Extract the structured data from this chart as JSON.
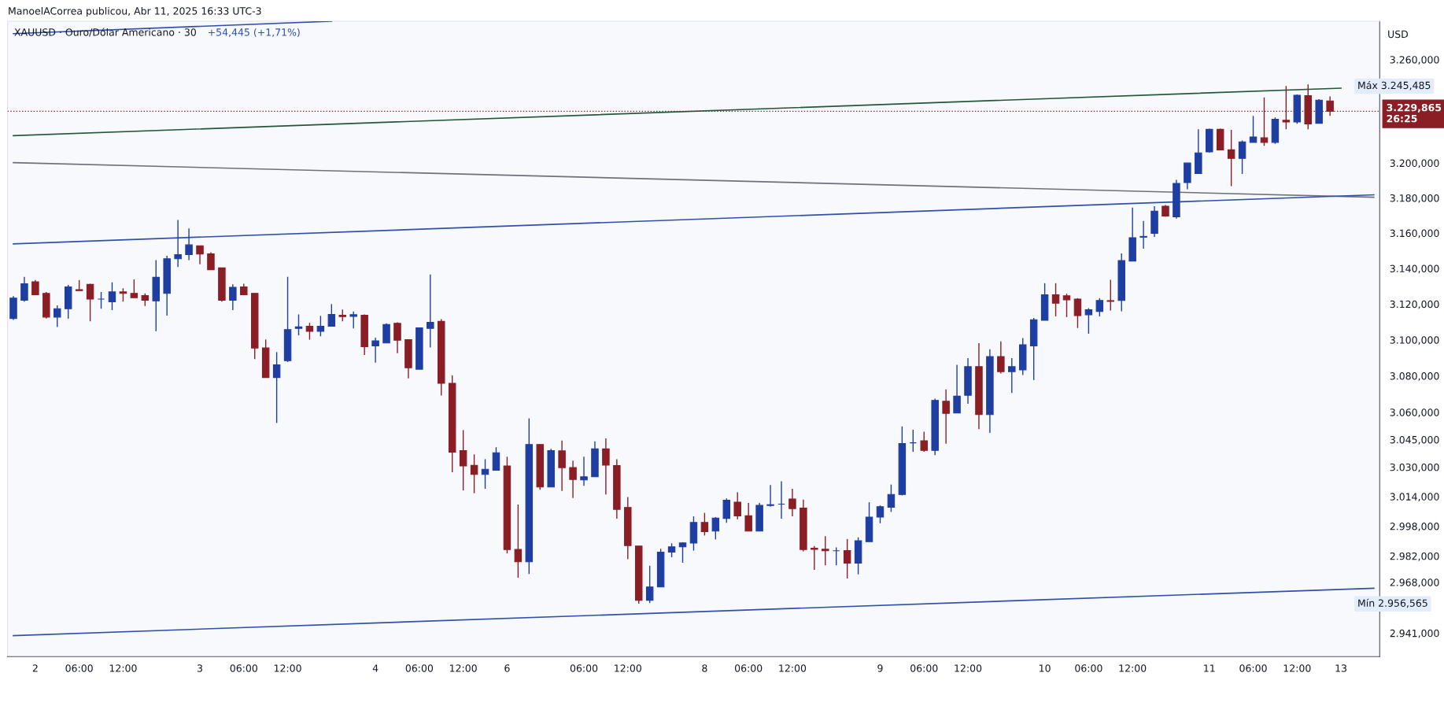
{
  "chart_data": {
    "type": "candlestick",
    "title": "XAUUSD · Ouro/Dólar Americano · 30",
    "subtitle": "+54,445 (+1,71%)",
    "ylabel": "USD",
    "log": true,
    "annotations": [
      "ManoelACorrea publicou, Abr 11, 2025 16:33 UTC-3",
      "Máx 3.245,485",
      "Mín 2.956,565"
    ],
    "ylim": [
      2928.6,
      3282.5
    ],
    "yticks": [
      {
        "value": 3260,
        "label": "3.260,000"
      },
      {
        "value": 3200,
        "label": "3.200,000"
      },
      {
        "value": 3180,
        "label": "3.180,000"
      },
      {
        "value": 3160,
        "label": "3.160,000"
      },
      {
        "value": 3140,
        "label": "3.140,000"
      },
      {
        "value": 3120,
        "label": "3.120,000"
      },
      {
        "value": 3100,
        "label": "3.100,000"
      },
      {
        "value": 3080,
        "label": "3.080,000"
      },
      {
        "value": 3060,
        "label": "3.060,000"
      },
      {
        "value": 3045,
        "label": "3.045,000"
      },
      {
        "value": 3030,
        "label": "3.030,000"
      },
      {
        "value": 3014,
        "label": "3.014,000"
      },
      {
        "value": 2998,
        "label": "2.998,000"
      },
      {
        "value": 2982,
        "label": "2.982,000"
      },
      {
        "value": 2968,
        "label": "2.968,000"
      },
      {
        "value": 2941,
        "label": "2.941,000"
      }
    ],
    "ref_lines": [
      {
        "axis": "y",
        "value": 3229.865,
        "label": "3.229,865\n26:25",
        "color": "#8b1d25",
        "line_style": "dotted"
      }
    ],
    "categories": [
      null,
      null,
      "2",
      null,
      null,
      null,
      "06:00",
      null,
      null,
      null,
      "12:00",
      null,
      null,
      null,
      null,
      null,
      null,
      "3",
      null,
      null,
      null,
      "06:00",
      null,
      null,
      null,
      "12:00",
      null,
      null,
      null,
      null,
      null,
      null,
      null,
      "4",
      null,
      null,
      null,
      "06:00",
      null,
      null,
      null,
      "12:00",
      null,
      null,
      null,
      "6",
      null,
      null,
      null,
      null,
      null,
      null,
      "06:00",
      null,
      null,
      null,
      "12:00",
      null,
      null,
      null,
      null,
      null,
      null,
      "8",
      null,
      null,
      null,
      "06:00",
      null,
      null,
      null,
      "12:00",
      null,
      null,
      null,
      null,
      null,
      null,
      null,
      "9",
      null,
      null,
      null,
      "06:00",
      null,
      null,
      null,
      "12:00",
      null,
      null,
      null,
      null,
      null,
      null,
      "10",
      null,
      null,
      null,
      "06:00",
      null,
      null,
      null,
      "12:00",
      null,
      null,
      null,
      null,
      null,
      null,
      "11",
      null,
      null,
      null,
      "06:00",
      null,
      null,
      null,
      "12:00",
      null,
      null,
      null,
      "13",
      null,
      null,
      null
    ],
    "ohlc": [
      [
        3111.9,
        3124.4,
        3111.1,
        3123.3
      ],
      [
        3122.1,
        3135.3,
        3121.3,
        3131.4
      ],
      [
        3132.5,
        3133.5,
        3125.2,
        3125.2
      ],
      [
        3126.0,
        3126.8,
        3111.9,
        3112.7
      ],
      [
        3112.7,
        3119.3,
        3107.2,
        3117.4
      ],
      [
        3117.4,
        3130.7,
        3111.9,
        3129.6
      ],
      [
        3128.0,
        3133.5,
        3127.5,
        3127.5
      ],
      [
        3131.0,
        3131.4,
        3110.3,
        3122.8
      ],
      [
        3122.8,
        3126.8,
        3117.4,
        3122.8
      ],
      [
        3121.3,
        3132.2,
        3116.6,
        3126.8
      ],
      [
        3126.8,
        3128.8,
        3121.3,
        3126.0
      ],
      [
        3126.0,
        3133.8,
        3123.6,
        3123.6
      ],
      [
        3124.7,
        3126.0,
        3118.9,
        3122.1
      ],
      [
        3121.8,
        3144.7,
        3104.9,
        3135.0
      ],
      [
        3126.0,
        3147.1,
        3113.5,
        3145.5
      ],
      [
        3145.5,
        3167.4,
        3140.8,
        3147.8
      ],
      [
        3147.8,
        3162.6,
        3144.7,
        3153.3
      ],
      [
        3152.8,
        3152.8,
        3142.4,
        3148.2
      ],
      [
        3148.2,
        3149.1,
        3139.3,
        3139.3
      ],
      [
        3140.3,
        3140.3,
        3121.3,
        3122.1
      ],
      [
        3122.1,
        3131.1,
        3116.6,
        3129.4
      ],
      [
        3129.6,
        3131.4,
        3125.2,
        3125.2
      ],
      [
        3126.0,
        3126.0,
        3089.3,
        3095.5
      ],
      [
        3095.5,
        3100.2,
        3079.1,
        3079.1
      ],
      [
        3079.1,
        3093.2,
        3054.1,
        3086.1
      ],
      [
        3088.5,
        3135.3,
        3087.7,
        3105.7
      ],
      [
        3106.4,
        3114.2,
        3102.5,
        3107.2
      ],
      [
        3107.6,
        3109.5,
        3100.1,
        3104.8
      ],
      [
        3104.8,
        3113.4,
        3102.0,
        3107.6
      ],
      [
        3107.6,
        3120.0,
        3107.6,
        3114.2
      ],
      [
        3113.7,
        3116.9,
        3110.3,
        3113.0
      ],
      [
        3113.1,
        3115.8,
        3106.4,
        3114.0
      ],
      [
        3113.7,
        3114.2,
        3091.6,
        3096.2
      ],
      [
        3096.7,
        3101.2,
        3087.3,
        3099.4
      ],
      [
        3098.3,
        3109.2,
        3098.3,
        3108.6
      ],
      [
        3109.2,
        3109.8,
        3092.6,
        3099.8
      ],
      [
        3100.1,
        3100.1,
        3078.6,
        3084.5
      ],
      [
        3083.7,
        3106.7,
        3083.7,
        3106.7
      ],
      [
        3106.4,
        3136.6,
        3095.8,
        3109.8
      ],
      [
        3110.3,
        3111.5,
        3069.2,
        3075.9
      ],
      [
        3075.9,
        3080.3,
        3027.2,
        3038.1
      ],
      [
        3038.9,
        3050.2,
        3017.3,
        3030.6
      ],
      [
        3030.9,
        3036.9,
        3015.8,
        3026.0
      ],
      [
        3026.0,
        3034.3,
        3018.2,
        3028.8
      ],
      [
        3028.3,
        3040.8,
        3028.3,
        3037.8
      ],
      [
        3030.6,
        3035.6,
        2983.4,
        2985.5
      ],
      [
        2985.5,
        3009.7,
        2970.4,
        2978.9
      ],
      [
        2978.9,
        3056.6,
        2972.4,
        3042.3
      ],
      [
        3042.3,
        3042.3,
        3017.7,
        3019.2
      ],
      [
        3019.2,
        3039.9,
        3019.2,
        3038.9
      ],
      [
        3038.8,
        3044.5,
        3017.0,
        3029.7
      ],
      [
        3029.7,
        3033.5,
        3013.2,
        3023.3
      ],
      [
        3023.0,
        3035.6,
        3019.8,
        3024.7
      ],
      [
        3024.7,
        3044.0,
        3024.7,
        3039.9
      ],
      [
        3039.9,
        3045.6,
        3015.1,
        3031.1
      ],
      [
        3030.8,
        3034.3,
        3002.1,
        3007.1
      ],
      [
        3008.1,
        3013.7,
        2980.3,
        2987.6
      ],
      [
        2987.3,
        2987.3,
        2956.565,
        2958.4
      ],
      [
        2958.4,
        2976.8,
        2957.0,
        2965.5
      ],
      [
        2965.5,
        2985.9,
        2965.5,
        2984.1
      ],
      [
        2984.1,
        2988.8,
        2981.3,
        2986.9
      ],
      [
        2986.9,
        2989.4,
        2978.4,
        2989.0
      ],
      [
        2989.0,
        3003.3,
        2984.9,
        3000.0
      ],
      [
        3000.0,
        3005.2,
        2993.0,
        2995.1
      ],
      [
        2995.4,
        3002.9,
        2990.9,
        3002.4
      ],
      [
        3002.2,
        3013.0,
        2999.8,
        3012.0
      ],
      [
        3011.0,
        3016.3,
        3001.7,
        3003.6
      ],
      [
        3003.6,
        3010.6,
        2995.4,
        2995.4
      ],
      [
        2995.4,
        3010.6,
        2995.4,
        3009.2
      ],
      [
        3009.2,
        3020.2,
        3008.5,
        3009.6
      ],
      [
        3009.9,
        3022.3,
        3002.1,
        3009.9
      ],
      [
        3012.7,
        3018.2,
        3003.3,
        3007.5
      ],
      [
        3007.8,
        3012.4,
        2984.5,
        2985.5
      ],
      [
        2986.2,
        2987.3,
        2974.6,
        2985.6
      ],
      [
        2985.6,
        2992.6,
        2977.0,
        2984.8
      ],
      [
        2984.8,
        2986.6,
        2977.0,
        2984.8
      ],
      [
        2984.9,
        2991.1,
        2970.0,
        2978.2
      ],
      [
        2978.2,
        2992.0,
        2972.2,
        2990.2
      ],
      [
        2989.7,
        3010.9,
        2989.7,
        3002.9
      ],
      [
        3002.9,
        3009.2,
        2999.6,
        3008.5
      ],
      [
        3008.2,
        3020.5,
        3005.7,
        3015.1
      ],
      [
        3015.1,
        3052.2,
        3014.6,
        3042.8
      ],
      [
        3043.2,
        3050.4,
        3038.3,
        3043.2
      ],
      [
        3044.3,
        3049.3,
        3038.3,
        3039.1
      ],
      [
        3039.1,
        3067.4,
        3036.5,
        3066.5
      ],
      [
        3066.0,
        3072.5,
        3042.7,
        3059.4
      ],
      [
        3059.6,
        3086.1,
        3059.6,
        3068.8
      ],
      [
        3069.3,
        3089.8,
        3064.6,
        3085.1
      ],
      [
        3085.1,
        3098.2,
        3050.7,
        3058.7
      ],
      [
        3058.7,
        3094.8,
        3048.6,
        3090.7
      ],
      [
        3090.7,
        3099.1,
        3081.4,
        3082.4
      ],
      [
        3082.4,
        3089.8,
        3070.6,
        3085.1
      ],
      [
        3083.3,
        3101.0,
        3080.5,
        3097.3
      ],
      [
        3096.7,
        3112.2,
        3077.7,
        3111.2
      ],
      [
        3110.9,
        3131.7,
        3110.9,
        3125.2
      ],
      [
        3125.2,
        3131.7,
        3113.1,
        3120.5
      ],
      [
        3124.6,
        3125.8,
        3112.7,
        3122.4
      ],
      [
        3122.8,
        3123.3,
        3106.6,
        3113.5
      ],
      [
        3114.0,
        3117.7,
        3103.4,
        3116.8
      ],
      [
        3115.9,
        3123.3,
        3113.1,
        3122.0
      ],
      [
        3121.9,
        3133.6,
        3116.4,
        3121.5
      ],
      [
        3122.0,
        3148.5,
        3115.9,
        3144.4
      ],
      [
        3144.2,
        3174.5,
        3144.2,
        3157.4
      ],
      [
        3157.7,
        3166.9,
        3151.1,
        3158.1
      ],
      [
        3159.9,
        3175.3,
        3157.8,
        3172.5
      ],
      [
        3175.3,
        3176.0,
        3169.3,
        3169.7
      ],
      [
        3169.3,
        3190.3,
        3168.2,
        3188.3
      ],
      [
        3188.8,
        3200.0,
        3185.0,
        3200.0
      ],
      [
        3194.0,
        3219.5,
        3194.0,
        3205.8
      ],
      [
        3206.4,
        3219.8,
        3206.1,
        3219.4
      ],
      [
        3219.4,
        3219.8,
        3207.6,
        3207.6
      ],
      [
        3207.6,
        3219.1,
        3186.8,
        3202.7
      ],
      [
        3202.7,
        3213.0,
        3193.7,
        3212.2
      ],
      [
        3211.9,
        3227.2,
        3211.9,
        3215.0
      ],
      [
        3214.5,
        3237.9,
        3209.9,
        3211.9
      ],
      [
        3211.9,
        3226.3,
        3211.0,
        3225.2
      ],
      [
        3224.7,
        3244.6,
        3219.5,
        3223.7
      ],
      [
        3223.7,
        3239.7,
        3222.6,
        3239.2
      ],
      [
        3238.9,
        3245.485,
        3219.5,
        3222.6
      ],
      [
        3222.9,
        3236.9,
        3222.9,
        3236.3
      ],
      [
        3235.9,
        3238.5,
        3227.2,
        3229.865
      ],
      null,
      null,
      null,
      null
    ],
    "colors": [
      "#1e3ea1",
      "#1e3ea1",
      "#8b1d25",
      "#8b1d25",
      "#1e3ea1",
      "#1e3ea1",
      "#8b1d25",
      "#8b1d25",
      "#1e3ea1",
      "#1e3ea1",
      "#8b1d25",
      "#8b1d25",
      "#8b1d25",
      "#1e3ea1",
      "#1e3ea1",
      "#1e3ea1",
      "#1e3ea1",
      "#8b1d25",
      "#8b1d25",
      "#8b1d25",
      "#1e3ea1",
      "#8b1d25",
      "#8b1d25",
      "#8b1d25",
      "#1e3ea1",
      "#1e3ea1",
      "#1e3ea1",
      "#8b1d25",
      "#1e3ea1",
      "#1e3ea1",
      "#8b1d25",
      "#1e3ea1",
      "#8b1d25",
      "#1e3ea1",
      "#1e3ea1",
      "#8b1d25",
      "#8b1d25",
      "#1e3ea1",
      "#1e3ea1",
      "#8b1d25",
      "#8b1d25",
      "#8b1d25",
      "#8b1d25",
      "#1e3ea1",
      "#1e3ea1",
      "#8b1d25",
      "#8b1d25",
      "#1e3ea1",
      "#8b1d25",
      "#1e3ea1",
      "#8b1d25",
      "#8b1d25",
      "#1e3ea1",
      "#1e3ea1",
      "#8b1d25",
      "#8b1d25",
      "#8b1d25",
      "#8b1d25",
      "#1e3ea1",
      "#1e3ea1",
      "#1e3ea1",
      "#1e3ea1",
      "#1e3ea1",
      "#8b1d25",
      "#1e3ea1",
      "#1e3ea1",
      "#8b1d25",
      "#8b1d25",
      "#1e3ea1",
      "#1e3ea1",
      "#1e3ea1",
      "#8b1d25",
      "#8b1d25",
      "#8b1d25",
      "#8b1d25",
      "#1e3ea1",
      "#8b1d25",
      "#1e3ea1",
      "#1e3ea1",
      "#1e3ea1",
      "#1e3ea1",
      "#1e3ea1",
      "#1e3ea1",
      "#8b1d25",
      "#1e3ea1",
      "#8b1d25",
      "#1e3ea1",
      "#1e3ea1",
      "#8b1d25",
      "#1e3ea1",
      "#8b1d25",
      "#1e3ea1",
      "#1e3ea1",
      "#1e3ea1",
      "#1e3ea1",
      "#8b1d25",
      "#8b1d25",
      "#8b1d25",
      "#1e3ea1",
      "#1e3ea1",
      "#8b1d25",
      "#1e3ea1",
      "#1e3ea1",
      "#1e3ea1",
      "#1e3ea1",
      "#8b1d25",
      "#1e3ea1",
      "#1e3ea1",
      "#1e3ea1",
      "#1e3ea1",
      "#8b1d25",
      "#8b1d25",
      "#1e3ea1",
      "#1e3ea1",
      "#8b1d25",
      "#1e3ea1",
      "#8b1d25",
      "#1e3ea1",
      "#8b1d25",
      "#1e3ea1",
      "#8b1d25",
      null,
      null,
      null,
      null
    ],
    "series": [
      {
        "type": "line",
        "color": "#24573a",
        "values": [
          3215.8,
          null,
          null,
          null,
          null,
          null,
          null,
          null,
          null,
          null,
          null,
          null,
          null,
          null,
          null,
          null,
          null,
          null,
          null,
          null,
          null,
          null,
          null,
          null,
          null,
          null,
          null,
          null,
          null,
          null,
          null,
          null,
          null,
          null,
          null,
          null,
          null,
          null,
          null,
          null,
          null,
          null,
          null,
          null,
          null,
          null,
          null,
          null,
          null,
          null,
          null,
          null,
          null,
          null,
          null,
          null,
          null,
          null,
          null,
          null,
          null,
          null,
          null,
          null,
          null,
          null,
          null,
          null,
          null,
          null,
          null,
          null,
          null,
          null,
          null,
          null,
          null,
          null,
          null,
          null,
          null,
          null,
          null,
          null,
          null,
          null,
          null,
          null,
          null,
          null,
          null,
          null,
          null,
          null,
          null,
          null,
          null,
          null,
          null,
          null,
          null,
          null,
          null,
          null,
          null,
          null,
          null,
          null,
          null,
          null,
          null,
          null,
          null,
          null,
          null,
          null,
          null,
          null,
          null,
          null,
          null,
          3243.3,
          null,
          null,
          null
        ]
      },
      {
        "type": "line",
        "color": "#6e7178",
        "values": [
          3200.2,
          null,
          null,
          null,
          null,
          null,
          null,
          null,
          null,
          null,
          null,
          null,
          null,
          null,
          null,
          null,
          null,
          null,
          null,
          null,
          null,
          null,
          null,
          null,
          null,
          null,
          null,
          null,
          null,
          null,
          null,
          null,
          null,
          null,
          null,
          null,
          null,
          null,
          null,
          null,
          null,
          null,
          null,
          null,
          null,
          null,
          null,
          null,
          null,
          null,
          null,
          null,
          null,
          null,
          null,
          null,
          null,
          null,
          null,
          null,
          null,
          null,
          null,
          null,
          null,
          null,
          null,
          null,
          null,
          null,
          null,
          null,
          null,
          null,
          null,
          null,
          null,
          null,
          null,
          null,
          null,
          null,
          null,
          null,
          null,
          null,
          null,
          null,
          null,
          null,
          null,
          null,
          null,
          null,
          null,
          null,
          null,
          null,
          null,
          null,
          null,
          null,
          null,
          null,
          null,
          null,
          null,
          null,
          null,
          null,
          null,
          null,
          null,
          null,
          null,
          null,
          null,
          null,
          null,
          null,
          null,
          null,
          null,
          null,
          3180.4
        ]
      },
      {
        "type": "line",
        "color": "#2f4fb0",
        "values": [
          3153.9,
          null,
          null,
          null,
          null,
          null,
          null,
          null,
          null,
          null,
          null,
          null,
          null,
          null,
          null,
          null,
          null,
          null,
          null,
          null,
          null,
          null,
          null,
          null,
          null,
          null,
          null,
          null,
          null,
          null,
          null,
          null,
          null,
          null,
          null,
          null,
          null,
          null,
          null,
          null,
          null,
          null,
          null,
          null,
          null,
          null,
          null,
          null,
          null,
          null,
          null,
          null,
          null,
          null,
          null,
          null,
          null,
          null,
          null,
          null,
          null,
          null,
          null,
          null,
          null,
          null,
          null,
          null,
          null,
          null,
          null,
          null,
          null,
          null,
          null,
          null,
          null,
          null,
          null,
          null,
          null,
          null,
          null,
          null,
          null,
          null,
          null,
          null,
          null,
          null,
          null,
          null,
          null,
          null,
          null,
          null,
          null,
          null,
          null,
          null,
          null,
          null,
          null,
          null,
          null,
          null,
          null,
          null,
          null,
          null,
          null,
          null,
          null,
          null,
          null,
          null,
          null,
          null,
          null,
          null,
          null,
          null,
          null,
          null,
          3181.8
        ]
      },
      {
        "type": "line",
        "color": "#2f4fb0",
        "values": [
          2939.7,
          null,
          null,
          null,
          null,
          null,
          null,
          null,
          null,
          null,
          null,
          null,
          null,
          null,
          null,
          null,
          null,
          null,
          null,
          null,
          null,
          null,
          null,
          null,
          null,
          null,
          null,
          null,
          null,
          null,
          null,
          null,
          null,
          null,
          null,
          null,
          null,
          null,
          null,
          null,
          null,
          null,
          null,
          null,
          null,
          null,
          null,
          null,
          null,
          null,
          null,
          null,
          null,
          null,
          null,
          null,
          null,
          null,
          null,
          null,
          null,
          null,
          null,
          null,
          null,
          null,
          null,
          null,
          null,
          null,
          null,
          null,
          null,
          null,
          null,
          null,
          null,
          null,
          null,
          null,
          null,
          null,
          null,
          null,
          null,
          null,
          null,
          null,
          null,
          null,
          null,
          null,
          null,
          null,
          null,
          null,
          null,
          null,
          null,
          null,
          null,
          null,
          null,
          null,
          null,
          null,
          null,
          null,
          null,
          null,
          null,
          null,
          null,
          null,
          null,
          null,
          null,
          null,
          null,
          null,
          null,
          null,
          null,
          null,
          2964.8
        ]
      },
      {
        "type": "line",
        "color": "#2f4fb0",
        "values": [
          3275.2,
          null,
          null,
          null,
          null,
          null,
          null,
          null,
          null,
          null,
          null,
          null,
          null,
          null,
          null,
          null,
          null,
          null,
          null,
          null,
          null,
          null,
          null,
          null,
          null,
          null,
          null,
          null,
          null,
          3282.5,
          null,
          null,
          null,
          null,
          null,
          null,
          null,
          null,
          null,
          null,
          null,
          null,
          null,
          null,
          null,
          null,
          null,
          null,
          null,
          null,
          null,
          null,
          null,
          null,
          null,
          null,
          null,
          null,
          null,
          null,
          null,
          null,
          null,
          null,
          null,
          null,
          null,
          null,
          null,
          null,
          null,
          null,
          null,
          null,
          null,
          null,
          null,
          null,
          null,
          null,
          null,
          null,
          null,
          null,
          null,
          null,
          null,
          null,
          null,
          null,
          null,
          null,
          null,
          null,
          null,
          null,
          null,
          null,
          null,
          null,
          null,
          null,
          null,
          null,
          null,
          null,
          null,
          null,
          null,
          null,
          null,
          null,
          null,
          null,
          null,
          null,
          null,
          null,
          null,
          null,
          null,
          null,
          null,
          null,
          null
        ]
      }
    ]
  }
}
